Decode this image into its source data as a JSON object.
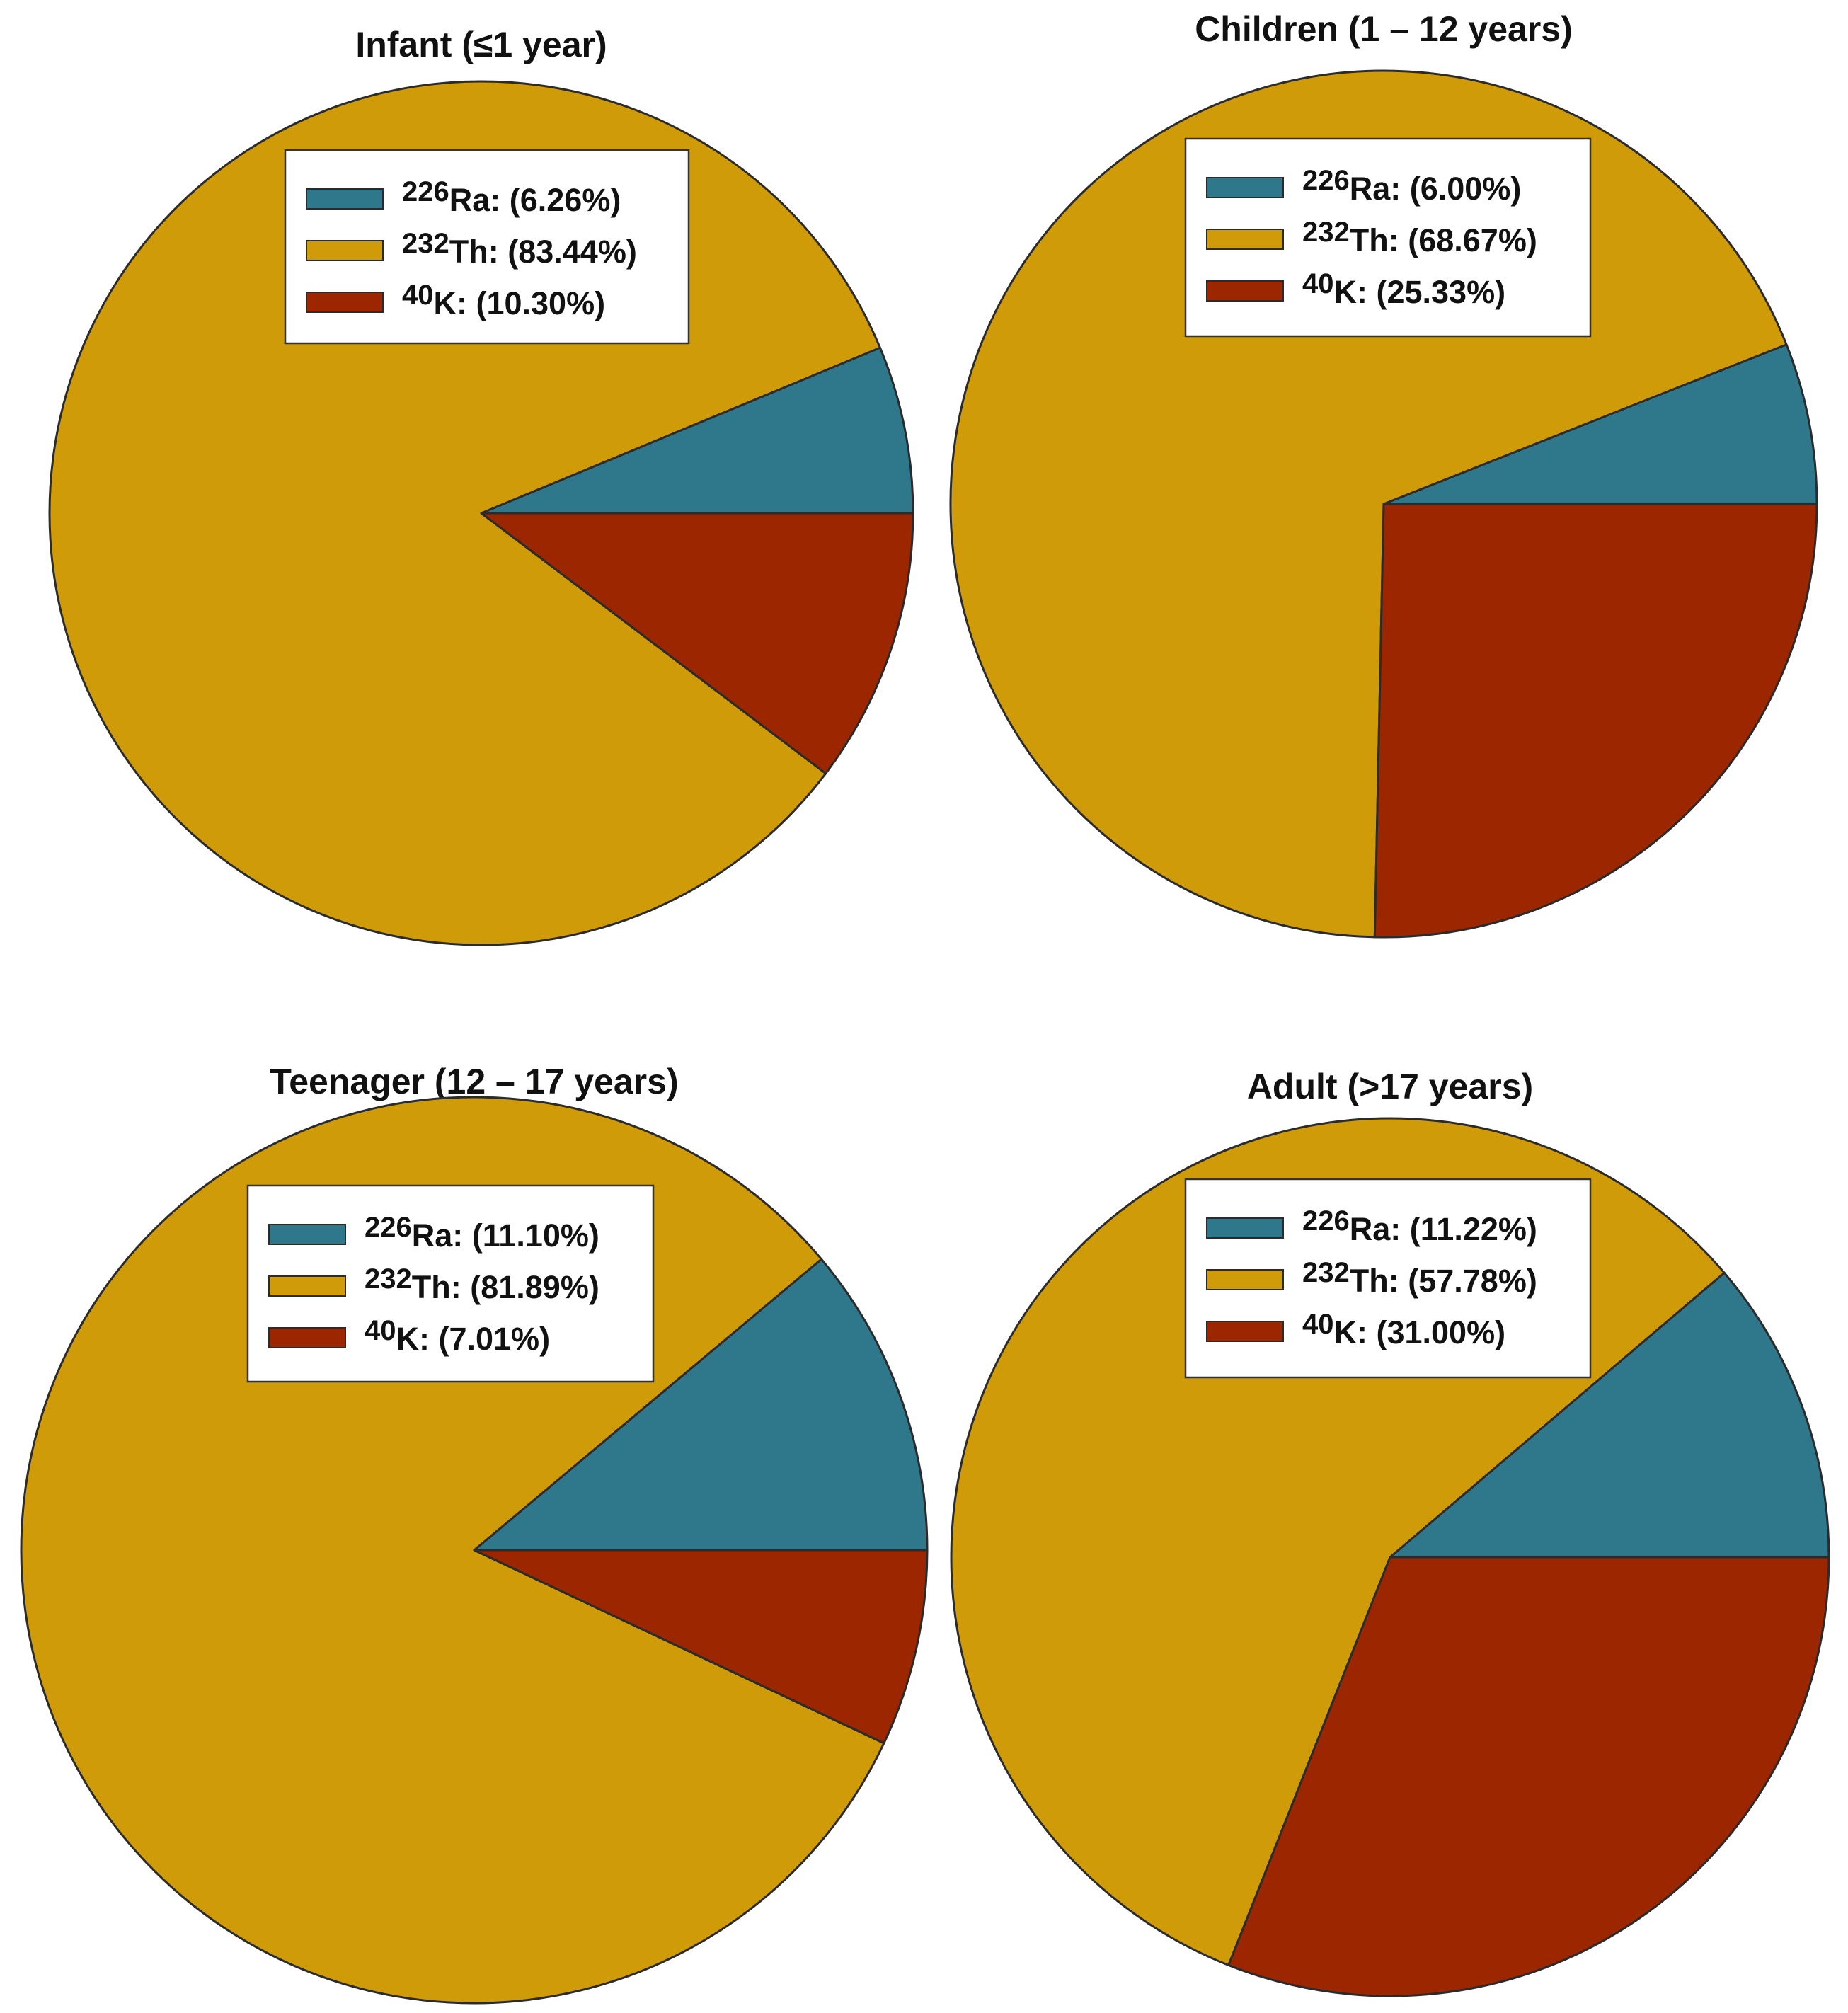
{
  "colors": {
    "Ra": "#2f778a",
    "Th": "#d09b08",
    "K": "#9b2600"
  },
  "chart_data": [
    {
      "type": "pie",
      "title": "Infant (≤1 year)",
      "series": [
        {
          "name": "226Ra",
          "mass": "226",
          "symbol": "Ra",
          "label": ": (6.26%)",
          "value": 6.26,
          "color_key": "Ra"
        },
        {
          "name": "232Th",
          "mass": "232",
          "symbol": "Th",
          "label": ": (83.44%)",
          "value": 83.44,
          "color_key": "Th"
        },
        {
          "name": "40K",
          "mass": "40",
          "symbol": "K",
          "label": ": (10.30%)",
          "value": 10.3,
          "color_key": "K"
        }
      ],
      "legend": "top-center"
    },
    {
      "type": "pie",
      "title": "Children (1 – 12 years)",
      "series": [
        {
          "name": "226Ra",
          "mass": "226",
          "symbol": "Ra",
          "label": ": (6.00%)",
          "value": 6.0,
          "color_key": "Ra"
        },
        {
          "name": "232Th",
          "mass": "232",
          "symbol": "Th",
          "label": ": (68.67%)",
          "value": 68.67,
          "color_key": "Th"
        },
        {
          "name": "40K",
          "mass": "40",
          "symbol": "K",
          "label": ": (25.33%)",
          "value": 25.33,
          "color_key": "K"
        }
      ],
      "legend": "top-center"
    },
    {
      "type": "pie",
      "title": "Teenager (12 – 17 years)",
      "series": [
        {
          "name": "226Ra",
          "mass": "226",
          "symbol": "Ra",
          "label": ": (11.10%)",
          "value": 11.1,
          "color_key": "Ra"
        },
        {
          "name": "232Th",
          "mass": "232",
          "symbol": "Th",
          "label": ": (81.89%)",
          "value": 81.89,
          "color_key": "Th"
        },
        {
          "name": "40K",
          "mass": "40",
          "symbol": "K",
          "label": ": (7.01%)",
          "value": 7.01,
          "color_key": "K"
        }
      ],
      "legend": "top-center"
    },
    {
      "type": "pie",
      "title": "Adult (>17 years)",
      "series": [
        {
          "name": "226Ra",
          "mass": "226",
          "symbol": "Ra",
          "label": ": (11.22%)",
          "value": 11.22,
          "color_key": "Ra"
        },
        {
          "name": "232Th",
          "mass": "232",
          "symbol": "Th",
          "label": ": (57.78%)",
          "value": 57.78,
          "color_key": "Th"
        },
        {
          "name": "40K",
          "mass": "40",
          "symbol": "K",
          "label": ": (31.00%)",
          "value": 31.0,
          "color_key": "K"
        }
      ],
      "legend": "top-center"
    }
  ]
}
